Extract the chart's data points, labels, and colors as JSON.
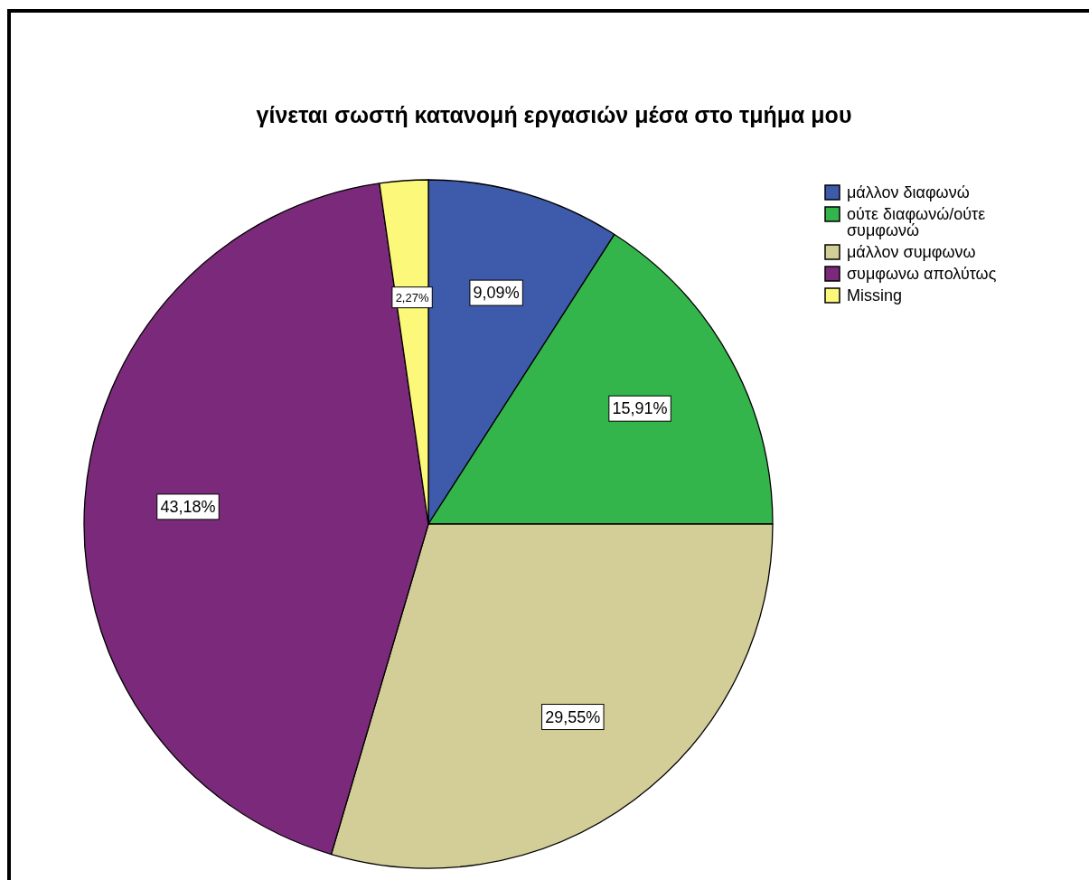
{
  "chart_data": {
    "type": "pie",
    "title": "γίνεται σωστή κατανομή εργασιών μέσα στο τμήμα μου",
    "categories": [
      "μάλλον διαφωνώ",
      "ούτε διαφωνώ/ούτε συμφωνώ",
      "μάλλον συμφωνω",
      "συμφωνω απολύτως",
      "Missing"
    ],
    "values": [
      9.09,
      15.91,
      29.55,
      43.18,
      2.27
    ],
    "colors": [
      "#3e5aab",
      "#33b54b",
      "#d3ce97",
      "#7b2a7b",
      "#fbf87a"
    ],
    "value_labels": [
      "9,09%",
      "15,91%",
      "29,55%",
      "43,18%",
      "2,27%"
    ],
    "legend": "right"
  }
}
